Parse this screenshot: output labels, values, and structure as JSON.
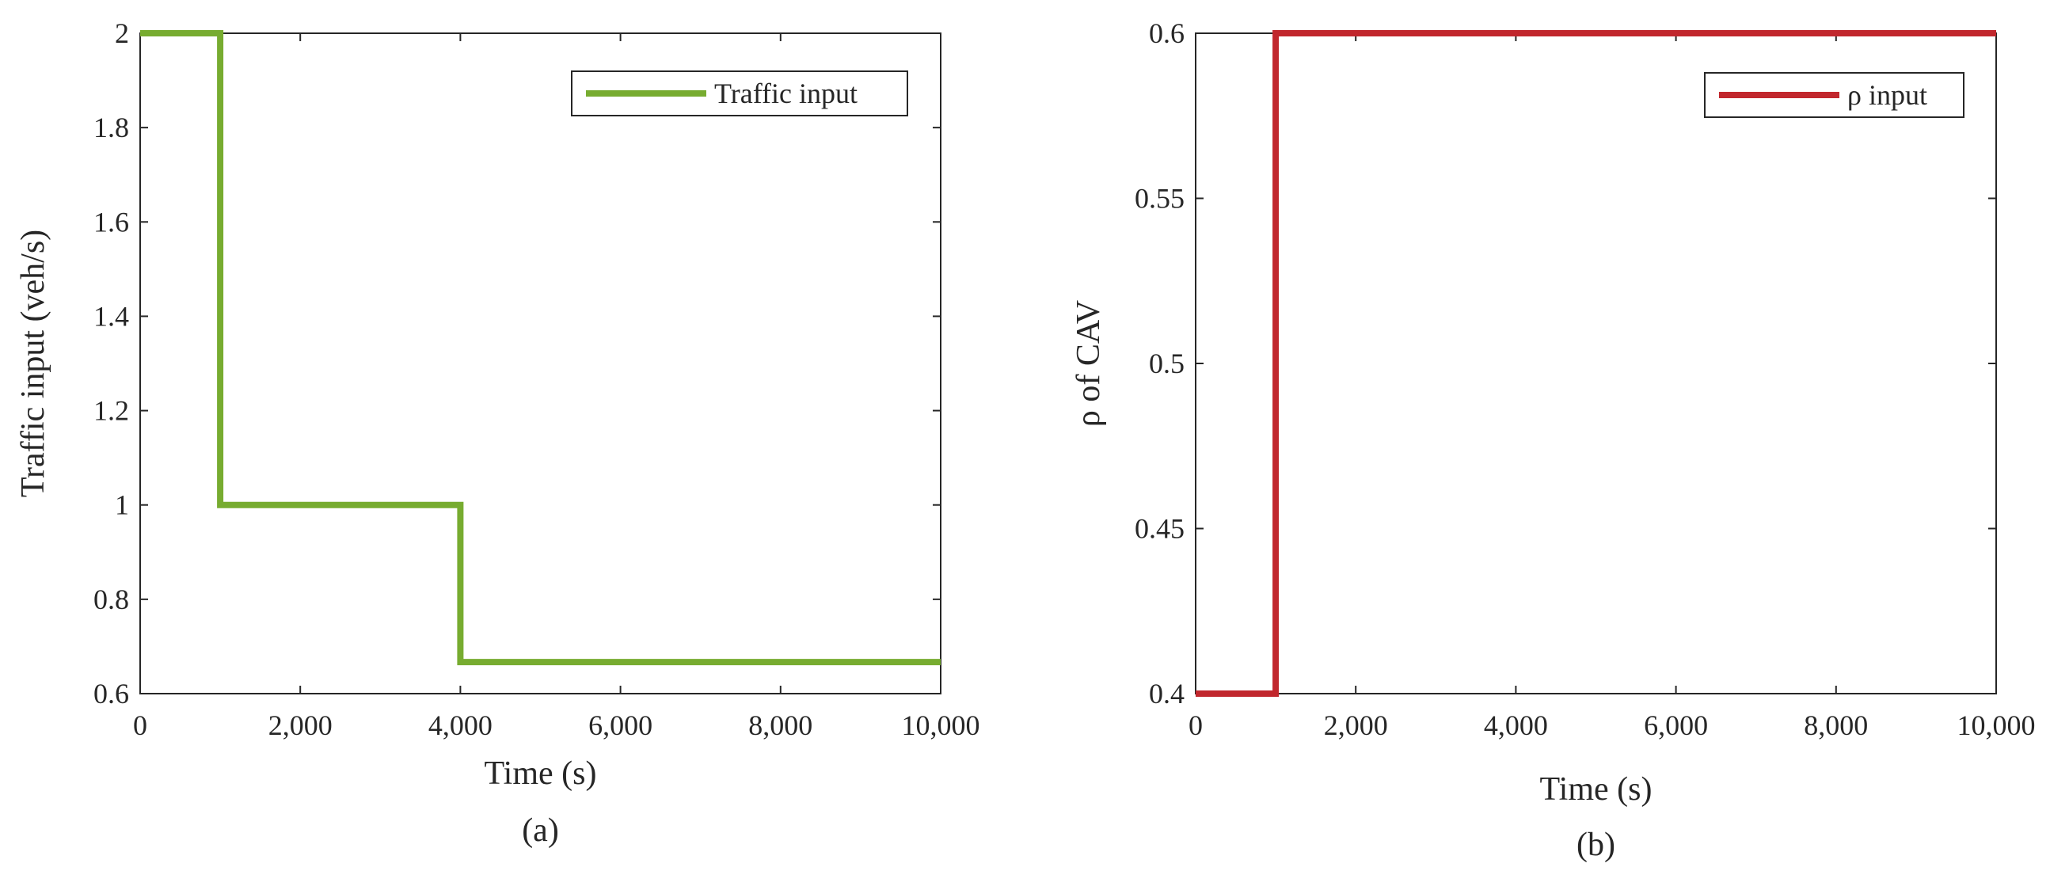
{
  "chart_data": [
    {
      "type": "line",
      "subplot_label": "(a)",
      "xlabel": "Time (s)",
      "ylabel": "Traffic input (veh/s)",
      "xlim": [
        0,
        10000
      ],
      "ylim": [
        0.6,
        2
      ],
      "x_ticks": [
        0,
        2000,
        4000,
        6000,
        8000,
        10000
      ],
      "x_tick_labels": [
        "0",
        "2,000",
        "4,000",
        "6,000",
        "8,000",
        "10,000"
      ],
      "y_ticks": [
        0.6,
        0.8,
        1,
        1.2,
        1.4,
        1.6,
        1.8,
        2
      ],
      "y_tick_labels": [
        "0.6",
        "0.8",
        "1",
        "1.2",
        "1.4",
        "1.6",
        "1.8",
        "2"
      ],
      "grid": false,
      "legend_position": "top-right",
      "series": [
        {
          "name": "Traffic input",
          "color": "#77AC30",
          "step": true,
          "x": [
            0,
            1000,
            1000,
            4000,
            4000,
            10000
          ],
          "y": [
            2,
            2,
            1,
            1,
            0.667,
            0.667
          ]
        }
      ]
    },
    {
      "type": "line",
      "subplot_label": "(b)",
      "xlabel": "Time (s)",
      "ylabel": "ρ of CAV",
      "xlim": [
        0,
        10000
      ],
      "ylim": [
        0.4,
        0.6
      ],
      "x_ticks": [
        0,
        2000,
        4000,
        6000,
        8000,
        10000
      ],
      "x_tick_labels": [
        "0",
        "2,000",
        "4,000",
        "6,000",
        "8,000",
        "10,000"
      ],
      "y_ticks": [
        0.4,
        0.45,
        0.5,
        0.55,
        0.6
      ],
      "y_tick_labels": [
        "0.4",
        "0.45",
        "0.5",
        "0.55",
        "0.6"
      ],
      "grid": false,
      "legend_position": "top-right",
      "series": [
        {
          "name": "ρ input",
          "color": "#C1272D",
          "step": true,
          "x": [
            0,
            1000,
            1000,
            10000
          ],
          "y": [
            0.4,
            0.4,
            0.6,
            0.6
          ]
        }
      ]
    }
  ]
}
